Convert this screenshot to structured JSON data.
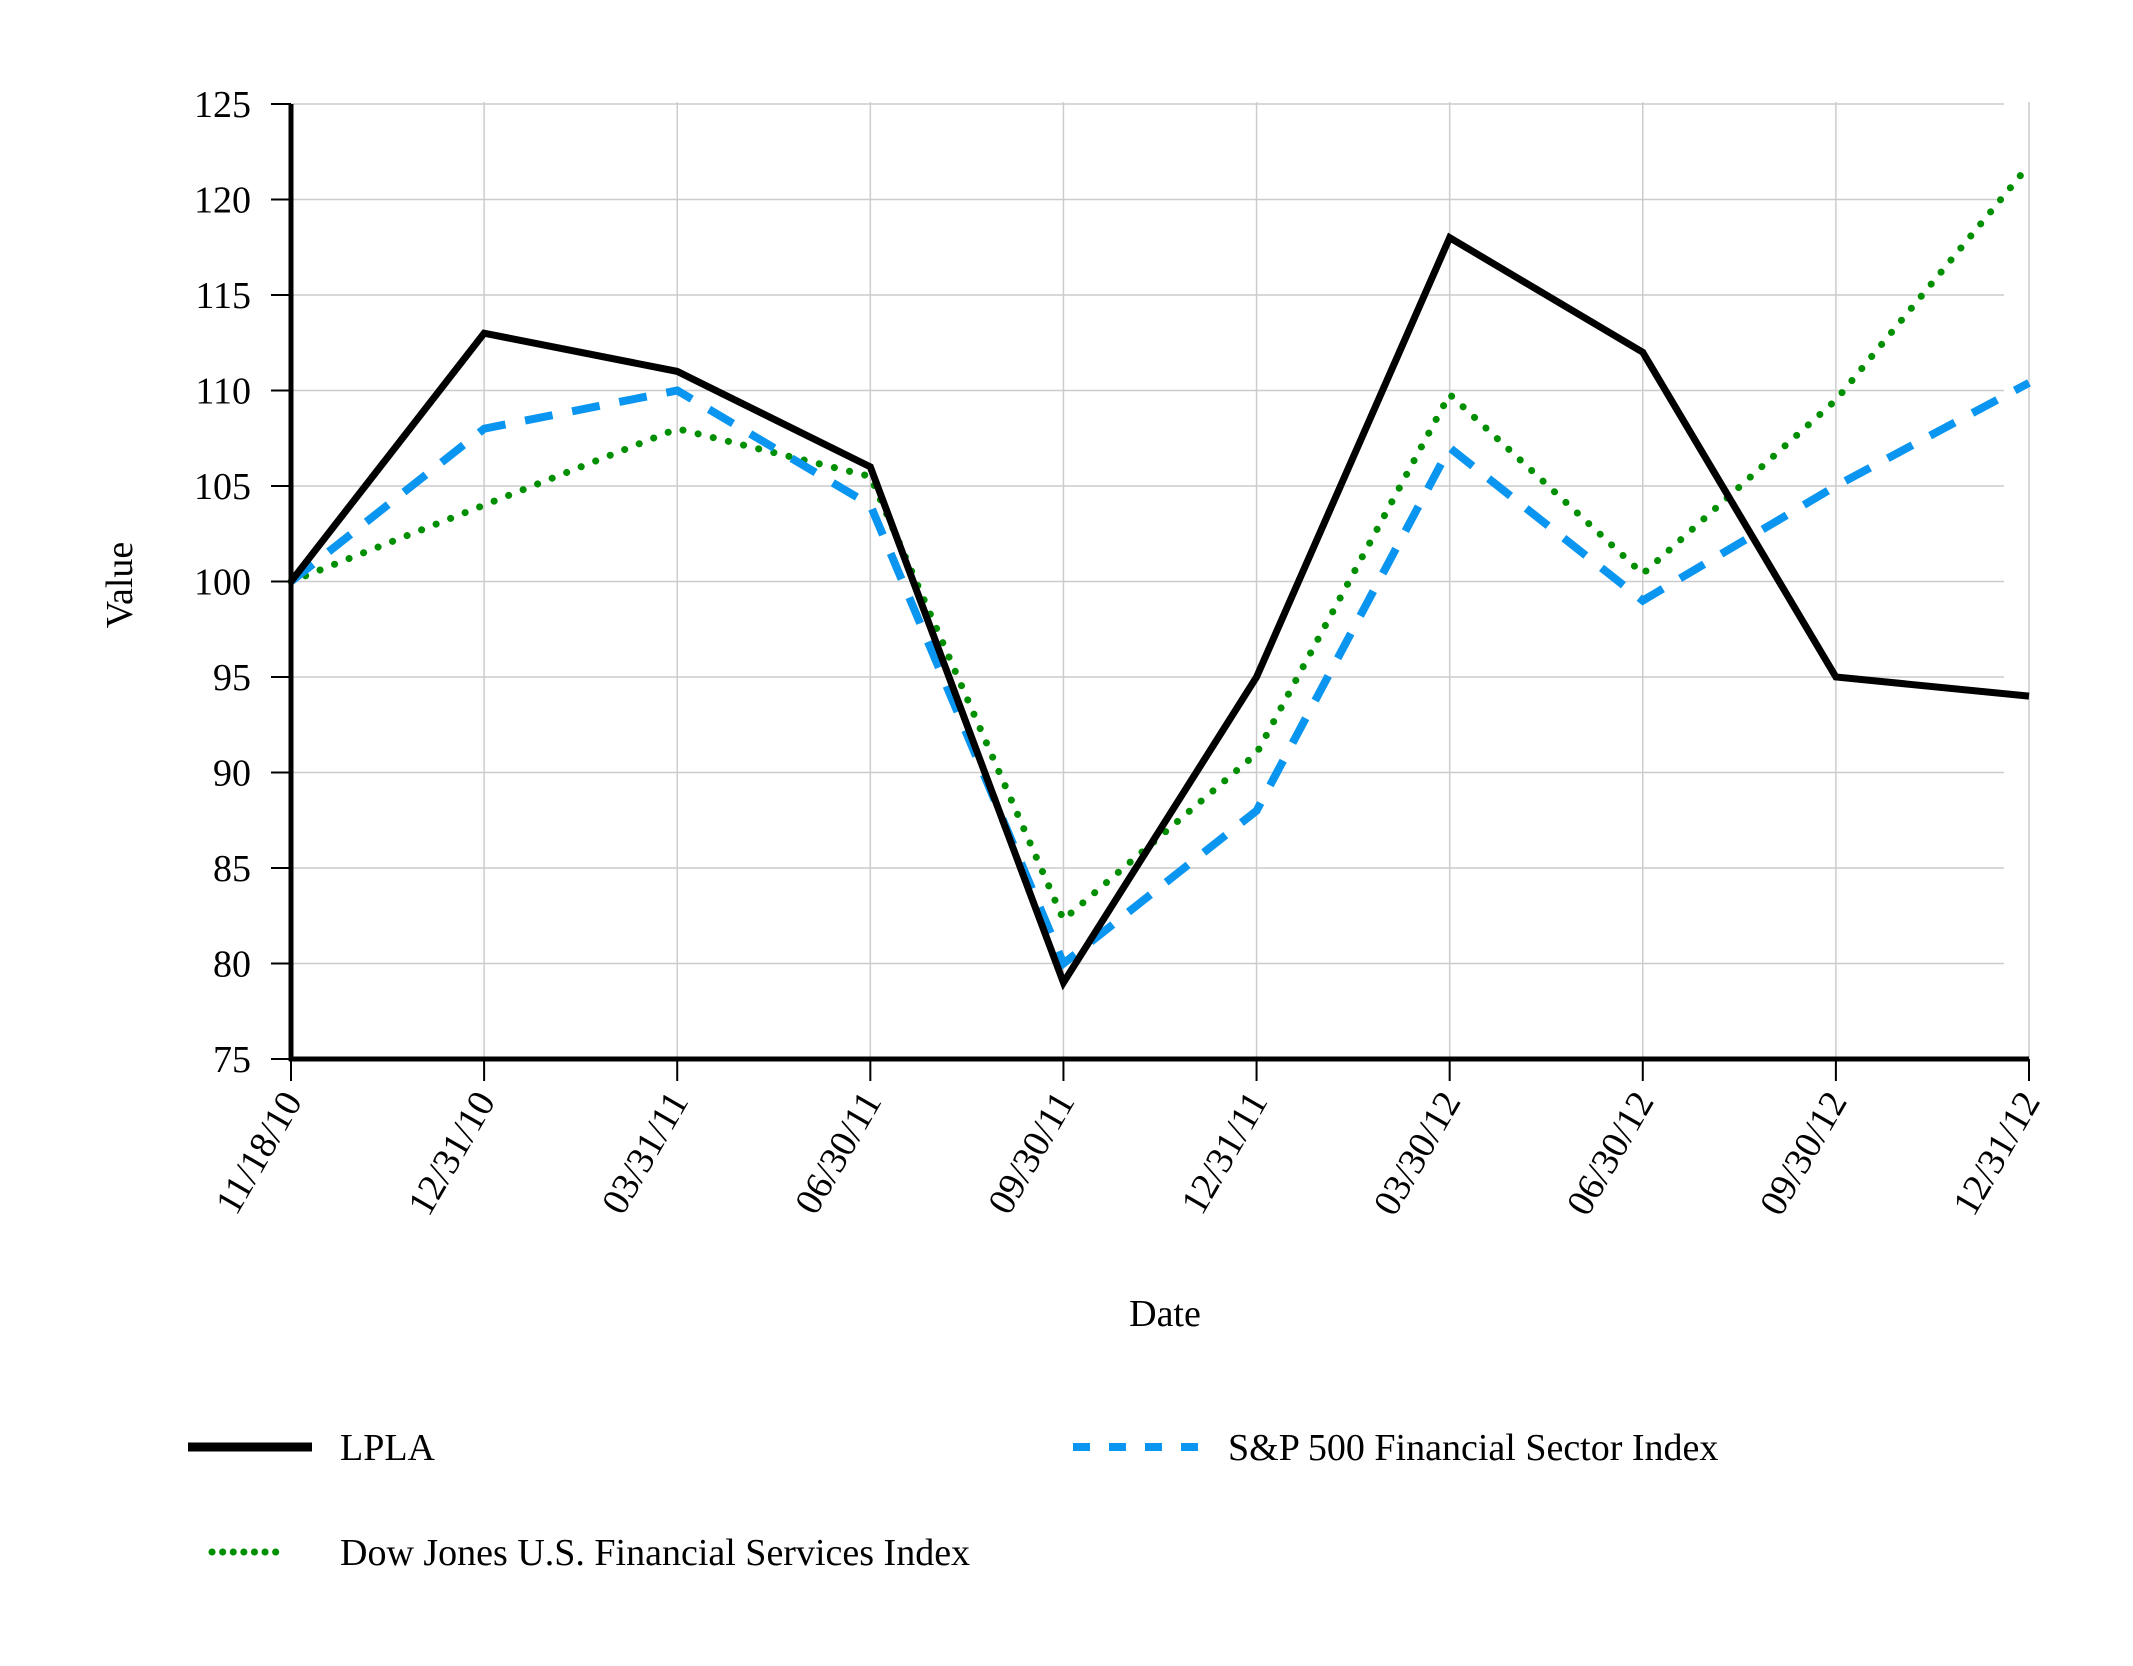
{
  "chart_data": {
    "type": "line",
    "title": "",
    "xlabel": "Date",
    "ylabel": "Value",
    "ylim": [
      75,
      125
    ],
    "yticks": [
      75,
      80,
      85,
      90,
      95,
      100,
      105,
      110,
      115,
      120,
      125
    ],
    "grid": true,
    "legend_position": "bottom",
    "categories": [
      "11/18/10",
      "12/31/10",
      "03/31/11",
      "06/30/11",
      "09/30/11",
      "12/31/11",
      "03/30/12",
      "06/30/12",
      "09/30/12",
      "12/31/12"
    ],
    "series": [
      {
        "name": "LPLA",
        "style": "solid",
        "color": "#000000",
        "values": [
          100,
          113,
          111,
          106,
          79,
          95,
          118,
          112,
          95,
          94
        ]
      },
      {
        "name": "S&P 500 Financial Sector Index",
        "style": "dashed",
        "color": "#0A96F0",
        "values": [
          100,
          108,
          110,
          104,
          80,
          88,
          107,
          99,
          105,
          110.4
        ]
      },
      {
        "name": "Dow Jones U.S. Financial Services Index",
        "style": "dotted",
        "color": "#008F00",
        "values": [
          100,
          104,
          108,
          105.5,
          82.3,
          91,
          109.8,
          100.4,
          109.5,
          121.8
        ]
      }
    ]
  }
}
